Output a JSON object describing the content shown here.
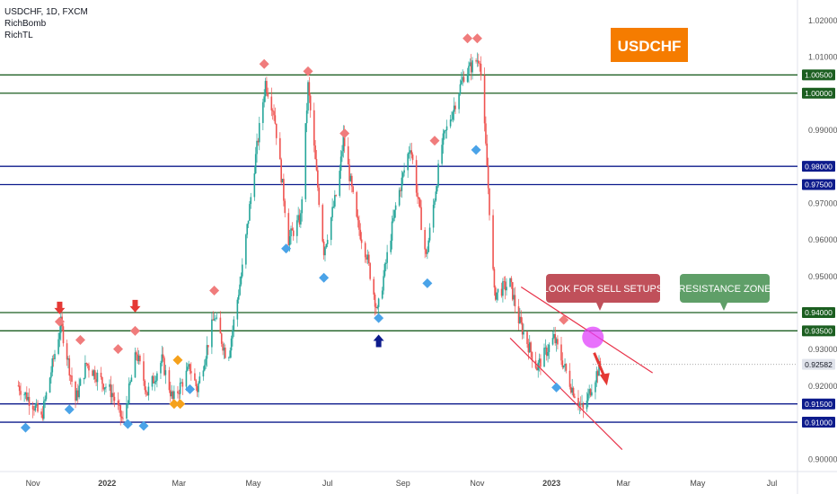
{
  "header": {
    "symbol_line": "USDCHF, 1D, FXCM",
    "indicator_1": "RichBomb",
    "indicator_2": "RichTL"
  },
  "colors": {
    "up": "#26a69a",
    "down": "#ef5350",
    "green_line": "#1b5e20",
    "blue_line": "#0d1b8c",
    "price_tag": "#e0e3eb",
    "title_bg": "#f57c00",
    "sell_box": "#c0505a",
    "resistance_box": "#5f9f68",
    "highlight": "#e040fb"
  },
  "chart_data": {
    "type": "candlestick",
    "title": "USDCHF",
    "x_ticks": [
      "Nov",
      "2022",
      "Mar",
      "May",
      "Jul",
      "Sep",
      "Nov",
      "2023",
      "Mar",
      "May",
      "Jul"
    ],
    "y_ticks": [
      "1.02000",
      "1.01000",
      "0.99000",
      "0.97000",
      "0.96000",
      "0.95000",
      "0.93000",
      "0.92000",
      "0.90000"
    ],
    "ylim": [
      0.8965,
      1.0255
    ],
    "current_price": "0.92582",
    "horizontal_levels": [
      {
        "price": 1.005,
        "label": "1.00500",
        "color": "green"
      },
      {
        "price": 1.0,
        "label": "1.00000",
        "color": "green"
      },
      {
        "price": 0.98,
        "label": "0.98000",
        "color": "blue"
      },
      {
        "price": 0.975,
        "label": "0.97500",
        "color": "blue"
      },
      {
        "price": 0.94,
        "label": "0.94000",
        "color": "green"
      },
      {
        "price": 0.935,
        "label": "0.93500",
        "color": "green"
      },
      {
        "price": 0.915,
        "label": "0.91500",
        "color": "blue"
      },
      {
        "price": 0.91,
        "label": "0.91000",
        "color": "blue"
      }
    ],
    "price_path": [
      [
        "2021-10-20",
        0.92
      ],
      [
        "2021-11-01",
        0.915
      ],
      [
        "2021-11-08",
        0.911
      ],
      [
        "2021-11-24",
        0.937
      ],
      [
        "2021-12-06",
        0.916
      ],
      [
        "2021-12-15",
        0.926
      ],
      [
        "2022-01-05",
        0.918
      ],
      [
        "2022-01-14",
        0.91
      ],
      [
        "2022-01-25",
        0.929
      ],
      [
        "2022-02-03",
        0.918
      ],
      [
        "2022-02-15",
        0.927
      ],
      [
        "2022-02-24",
        0.916
      ],
      [
        "2022-03-10",
        0.925
      ],
      [
        "2022-03-16",
        0.919
      ],
      [
        "2022-03-30",
        0.939
      ],
      [
        "2022-04-10",
        0.927
      ],
      [
        "2022-04-22",
        0.952
      ],
      [
        "2022-05-02",
        0.98
      ],
      [
        "2022-05-11",
        1.003
      ],
      [
        "2022-05-18",
        0.995
      ],
      [
        "2022-05-30",
        0.96
      ],
      [
        "2022-06-09",
        0.966
      ],
      [
        "2022-06-15",
        1.002
      ],
      [
        "2022-06-28",
        0.957
      ],
      [
        "2022-07-10",
        0.975
      ],
      [
        "2022-07-14",
        0.988
      ],
      [
        "2022-07-25",
        0.965
      ],
      [
        "2022-08-02",
        0.956
      ],
      [
        "2022-08-11",
        0.94
      ],
      [
        "2022-08-26",
        0.969
      ],
      [
        "2022-09-07",
        0.986
      ],
      [
        "2022-09-20",
        0.955
      ],
      [
        "2022-10-03",
        0.986
      ],
      [
        "2022-10-21",
        1.005
      ],
      [
        "2022-11-03",
        1.01
      ],
      [
        "2022-11-09",
        0.98
      ],
      [
        "2022-11-15",
        0.945
      ],
      [
        "2022-11-28",
        0.948
      ],
      [
        "2022-12-05",
        0.938
      ],
      [
        "2022-12-20",
        0.925
      ],
      [
        "2023-01-03",
        0.933
      ],
      [
        "2023-01-17",
        0.92
      ],
      [
        "2023-01-27",
        0.913
      ],
      [
        "2023-02-03",
        0.92
      ],
      [
        "2023-02-10",
        0.9258
      ]
    ],
    "sell_signals": [
      [
        "2021-11-23",
        0.9375
      ],
      [
        "2021-12-10",
        0.9325
      ],
      [
        "2022-01-10",
        0.93
      ],
      [
        "2022-01-24",
        0.935
      ],
      [
        "2022-03-30",
        0.946
      ],
      [
        "2022-05-10",
        1.008
      ],
      [
        "2022-06-15",
        1.006
      ],
      [
        "2022-07-15",
        0.989
      ],
      [
        "2022-09-27",
        0.987
      ],
      [
        "2022-10-24",
        1.015
      ],
      [
        "2022-11-01",
        1.015
      ],
      [
        "2023-01-11",
        0.938
      ]
    ],
    "buy_signals": [
      [
        "2021-10-26",
        0.9085
      ],
      [
        "2021-12-01",
        0.9135
      ],
      [
        "2022-01-18",
        0.9095
      ],
      [
        "2022-01-31",
        0.909
      ],
      [
        "2022-03-10",
        0.919
      ],
      [
        "2022-05-28",
        0.9575
      ],
      [
        "2022-06-28",
        0.9495
      ],
      [
        "2022-08-12",
        0.9385
      ],
      [
        "2022-09-21",
        0.948
      ],
      [
        "2022-10-31",
        0.9845
      ],
      [
        "2023-01-05",
        0.9195
      ]
    ],
    "neutral_signals": [
      [
        "2022-02-25",
        0.915
      ],
      [
        "2022-03-02",
        0.915
      ],
      [
        "2022-02-28",
        0.927
      ]
    ],
    "down_arrows": [
      [
        "2021-11-23",
        0.9405
      ],
      [
        "2022-01-24",
        0.941
      ]
    ],
    "up_arrows": [
      [
        "2022-08-12",
        0.933
      ]
    ],
    "channel_lines": [
      {
        "from": [
          "2022-12-07",
          0.947
        ],
        "to": [
          "2023-03-25",
          0.9235
        ]
      },
      {
        "from": [
          "2022-11-28",
          0.933
        ],
        "to": [
          "2023-02-28",
          0.9025
        ]
      }
    ],
    "highlight_point": [
      "2023-02-04",
      0.9332
    ],
    "forecast_arrow": {
      "from": [
        "2023-02-05",
        0.929
      ],
      "to": [
        "2023-02-14",
        0.921
      ]
    },
    "annotations": {
      "sell_box": "LOOK FOR SELL SETUPS",
      "resistance_box": "RESISTANCE ZONE"
    }
  }
}
